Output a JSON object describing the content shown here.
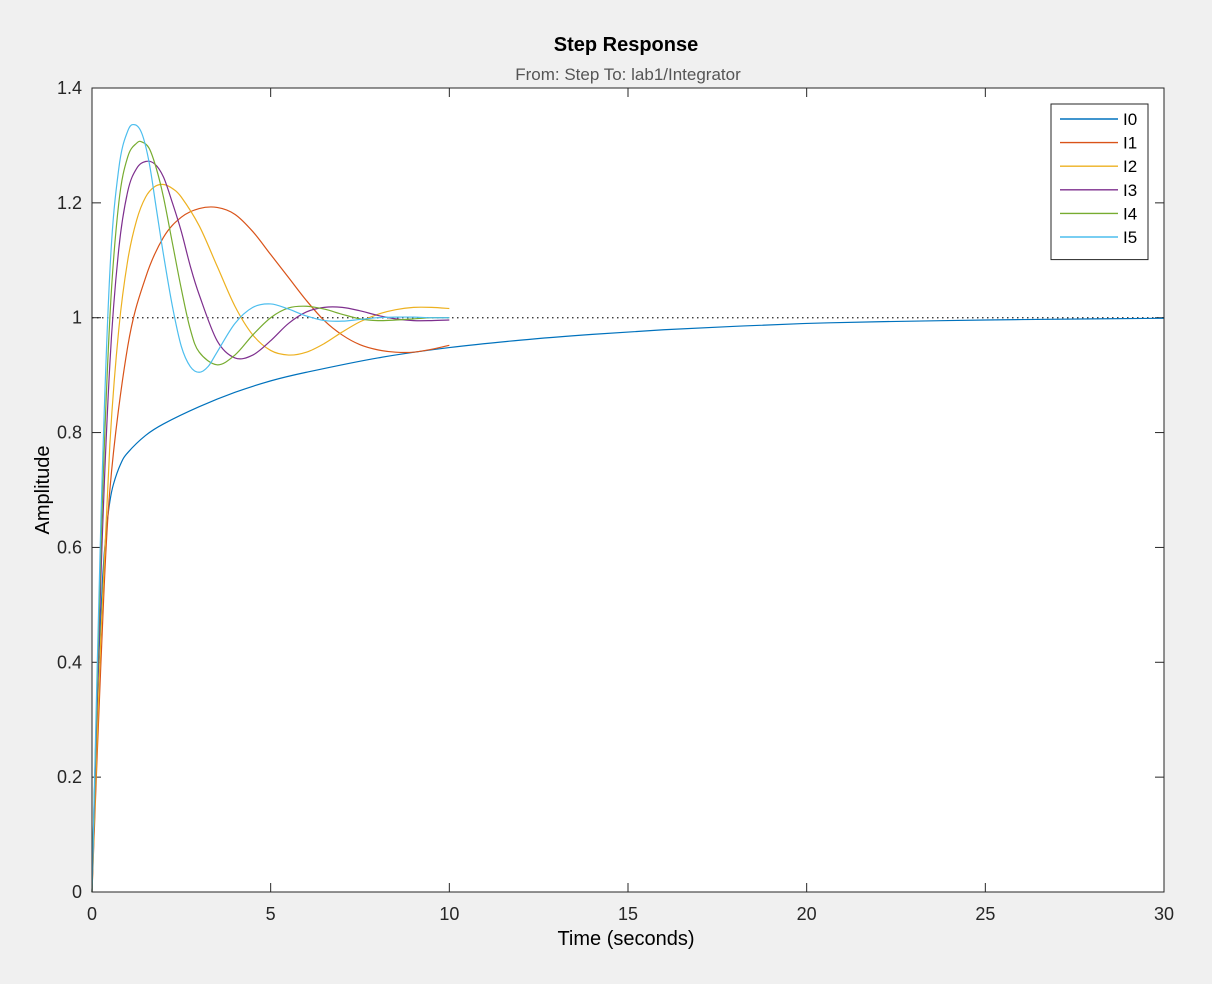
{
  "chart_data": {
    "type": "line",
    "title": "Step Response",
    "subtitle": "From: Step  To: lab1/Integrator",
    "xlabel": "Time (seconds)",
    "ylabel": "Amplitude",
    "xlim": [
      0,
      30
    ],
    "ylim": [
      0,
      1.4
    ],
    "xticks": [
      0,
      5,
      10,
      15,
      20,
      25,
      30
    ],
    "yticks": [
      0,
      0.2,
      0.4,
      0.6,
      0.8,
      1,
      1.2,
      1.4
    ],
    "grid": false,
    "legend_position": "top-right",
    "reference_line": {
      "y": 1,
      "style": "dotted"
    },
    "series": [
      {
        "name": "I0",
        "color": "#0072BD",
        "x": [
          0,
          0.1,
          0.2,
          0.3,
          0.4,
          0.5,
          0.6,
          0.8,
          1,
          1.5,
          2,
          3,
          4,
          5,
          6,
          8,
          10,
          12,
          14,
          16,
          18,
          20,
          22,
          25,
          28,
          30
        ],
        "y": [
          0,
          0.25,
          0.42,
          0.55,
          0.63,
          0.68,
          0.71,
          0.745,
          0.765,
          0.795,
          0.815,
          0.845,
          0.87,
          0.89,
          0.905,
          0.93,
          0.948,
          0.961,
          0.971,
          0.979,
          0.985,
          0.99,
          0.993,
          0.996,
          0.998,
          0.999
        ]
      },
      {
        "name": "I1",
        "color": "#D95319",
        "x": [
          0,
          0.25,
          0.5,
          1,
          1.5,
          2,
          2.5,
          3,
          3.5,
          4,
          4.5,
          5,
          5.5,
          6,
          6.5,
          7,
          7.5,
          8,
          8.5,
          9,
          9.5,
          10
        ],
        "y": [
          0,
          0.4,
          0.7,
          0.95,
          1.07,
          1.14,
          1.175,
          1.19,
          1.192,
          1.18,
          1.15,
          1.11,
          1.07,
          1.03,
          0.995,
          0.97,
          0.953,
          0.944,
          0.94,
          0.94,
          0.945,
          0.952
        ]
      },
      {
        "name": "I2",
        "color": "#EDB120",
        "x": [
          0,
          0.25,
          0.5,
          0.75,
          1,
          1.25,
          1.5,
          1.75,
          2,
          2.25,
          2.5,
          3,
          3.5,
          4,
          4.5,
          5,
          5.5,
          6,
          6.5,
          7,
          7.5,
          8,
          8.5,
          9,
          9.5,
          10
        ],
        "y": [
          0,
          0.45,
          0.78,
          0.98,
          1.1,
          1.17,
          1.21,
          1.228,
          1.232,
          1.225,
          1.21,
          1.16,
          1.09,
          1.02,
          0.97,
          0.943,
          0.935,
          0.94,
          0.955,
          0.975,
          0.993,
          1.006,
          1.014,
          1.018,
          1.018,
          1.016
        ]
      },
      {
        "name": "I3",
        "color": "#7E2F8E",
        "x": [
          0,
          0.25,
          0.5,
          0.75,
          1,
          1.25,
          1.5,
          1.75,
          2,
          2.25,
          2.5,
          2.75,
          3,
          3.5,
          4,
          4.5,
          5,
          5.5,
          6,
          6.5,
          7,
          7.5,
          8,
          8.5,
          9,
          9.5,
          10
        ],
        "y": [
          0,
          0.55,
          0.92,
          1.12,
          1.22,
          1.26,
          1.272,
          1.268,
          1.245,
          1.2,
          1.15,
          1.09,
          1.04,
          0.96,
          0.93,
          0.935,
          0.96,
          0.99,
          1.01,
          1.018,
          1.018,
          1.012,
          1.004,
          0.998,
          0.995,
          0.995,
          0.996
        ]
      },
      {
        "name": "I4",
        "color": "#77AC30",
        "x": [
          0,
          0.25,
          0.5,
          0.75,
          1,
          1.25,
          1.4,
          1.6,
          1.8,
          2,
          2.25,
          2.5,
          2.75,
          3,
          3.5,
          4,
          4.5,
          5,
          5.5,
          6,
          6.5,
          7,
          7.5,
          8,
          8.5,
          9,
          9.5,
          10
        ],
        "y": [
          0,
          0.6,
          1.0,
          1.2,
          1.28,
          1.304,
          1.306,
          1.295,
          1.26,
          1.21,
          1.13,
          1.05,
          0.98,
          0.94,
          0.918,
          0.935,
          0.97,
          1.0,
          1.017,
          1.02,
          1.015,
          1.006,
          0.998,
          0.995,
          0.996,
          0.998,
          1.0,
          1.0
        ]
      },
      {
        "name": "I5",
        "color": "#4DBEEE",
        "x": [
          0,
          0.25,
          0.5,
          0.75,
          1,
          1.2,
          1.4,
          1.6,
          1.8,
          2,
          2.25,
          2.5,
          2.75,
          3,
          3.25,
          3.5,
          4,
          4.5,
          5,
          5.5,
          6,
          6.5,
          7,
          7.5,
          8,
          8.5,
          9,
          9.5,
          10
        ],
        "y": [
          0,
          0.65,
          1.08,
          1.26,
          1.325,
          1.336,
          1.32,
          1.27,
          1.19,
          1.11,
          1.02,
          0.95,
          0.915,
          0.905,
          0.915,
          0.94,
          0.99,
          1.018,
          1.024,
          1.015,
          1.003,
          0.995,
          0.994,
          0.997,
          1.0,
          1.001,
          1.001,
          1.0,
          1.0
        ]
      }
    ]
  }
}
